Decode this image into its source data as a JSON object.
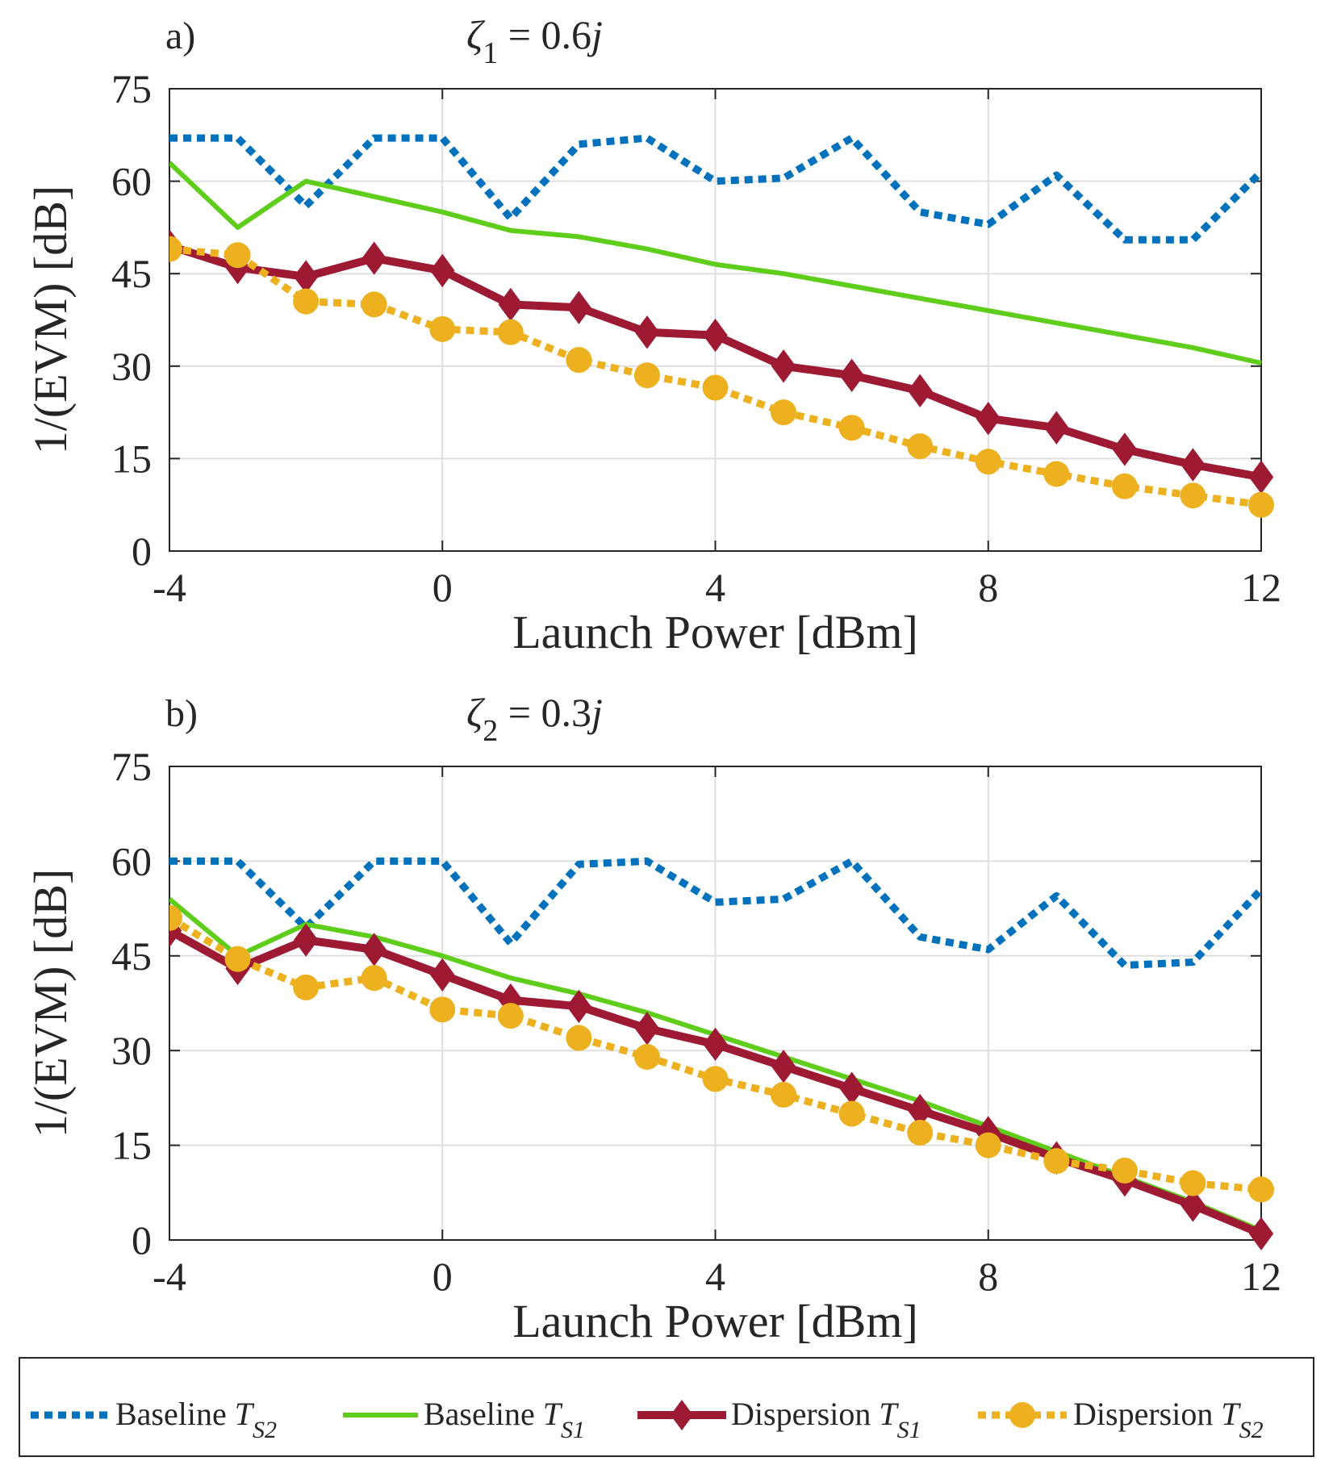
{
  "chart_data": [
    {
      "type": "line",
      "panel_label": "a)",
      "title_parts": {
        "symbol": "ζ",
        "subscript": "1",
        "rest": " = 0.6",
        "imag": "j"
      },
      "xlabel": "Launch Power [dBm]",
      "ylabel": "1/(EVM) [dB]",
      "xlim": [
        -4,
        12
      ],
      "ylim": [
        0,
        75
      ],
      "xticks": [
        "-4",
        "0",
        "4",
        "8",
        "12"
      ],
      "yticks": [
        "0",
        "15",
        "30",
        "45",
        "60",
        "75"
      ],
      "grid": true,
      "x": [
        -4,
        -3,
        -2,
        -1,
        0,
        1,
        2,
        3,
        4,
        5,
        6,
        7,
        8,
        9,
        10,
        11,
        12
      ],
      "series": [
        {
          "name": "Baseline T_S2",
          "values": [
            67,
            67,
            56,
            67,
            67,
            54,
            66,
            67,
            60,
            60.5,
            67,
            55,
            53,
            61,
            50.5,
            50.5,
            61.5
          ]
        },
        {
          "name": "Baseline T_S1",
          "values": [
            63,
            52.5,
            60,
            57.5,
            55,
            52,
            51,
            49,
            46.5,
            45,
            43,
            41,
            39,
            37,
            35,
            33,
            30.5
          ]
        },
        {
          "name": "Dispersion T_S1",
          "values": [
            49.5,
            46,
            44.5,
            47.5,
            45.5,
            40,
            39.5,
            35.5,
            35,
            30,
            28.5,
            26,
            21.5,
            20,
            16.5,
            14,
            12
          ]
        },
        {
          "name": "Dispersion T_S2",
          "values": [
            49,
            48,
            40.5,
            40,
            36,
            35.5,
            31,
            28.5,
            26.5,
            22.5,
            20,
            17,
            14.5,
            12.5,
            10.5,
            9,
            7.5
          ]
        }
      ]
    },
    {
      "type": "line",
      "panel_label": "b)",
      "title_parts": {
        "symbol": "ζ",
        "subscript": "2",
        "rest": " = 0.3",
        "imag": "j"
      },
      "xlabel": "Launch Power [dBm]",
      "ylabel": "1/(EVM) [dB]",
      "xlim": [
        -4,
        12
      ],
      "ylim": [
        0,
        75
      ],
      "xticks": [
        "-4",
        "0",
        "4",
        "8",
        "12"
      ],
      "yticks": [
        "0",
        "15",
        "30",
        "45",
        "60",
        "75"
      ],
      "grid": true,
      "x": [
        -4,
        -3,
        -2,
        -1,
        0,
        1,
        2,
        3,
        4,
        5,
        6,
        7,
        8,
        9,
        10,
        11,
        12
      ],
      "series": [
        {
          "name": "Baseline T_S2",
          "values": [
            60,
            60,
            49.5,
            60,
            60,
            47,
            59.5,
            60,
            53.5,
            54,
            60,
            48,
            46,
            54.5,
            43.5,
            44,
            55.5
          ]
        },
        {
          "name": "Baseline T_S1",
          "values": [
            54,
            45,
            50,
            48,
            45,
            41.5,
            39,
            36,
            32.5,
            29,
            25.5,
            22,
            18,
            14,
            10,
            6,
            1.5
          ]
        },
        {
          "name": "Dispersion T_S1",
          "values": [
            49,
            43,
            47.5,
            46,
            42,
            38,
            37,
            33.5,
            31,
            27.5,
            24,
            20.5,
            17,
            13,
            9.5,
            5.5,
            1
          ]
        },
        {
          "name": "Dispersion T_S2",
          "values": [
            51,
            44.5,
            40,
            41.5,
            36.5,
            35.5,
            32,
            29,
            25.5,
            23,
            20,
            17,
            15,
            12.5,
            11,
            9,
            8
          ]
        }
      ]
    }
  ],
  "legend": [
    {
      "prefix": "Baseline ",
      "var": "T",
      "sub": "S2",
      "color": "#0072BD",
      "style": "dotted",
      "marker": "none"
    },
    {
      "prefix": "Baseline ",
      "var": "T",
      "sub": "S1",
      "color": "#5ECE1A",
      "style": "solid",
      "marker": "none"
    },
    {
      "prefix": "Dispersion ",
      "var": "T",
      "sub": "S1",
      "color": "#9E1A33",
      "style": "solid",
      "marker": "diamond"
    },
    {
      "prefix": "Dispersion ",
      "var": "T",
      "sub": "S2",
      "color": "#EDB120",
      "style": "dotted",
      "marker": "circle"
    }
  ]
}
